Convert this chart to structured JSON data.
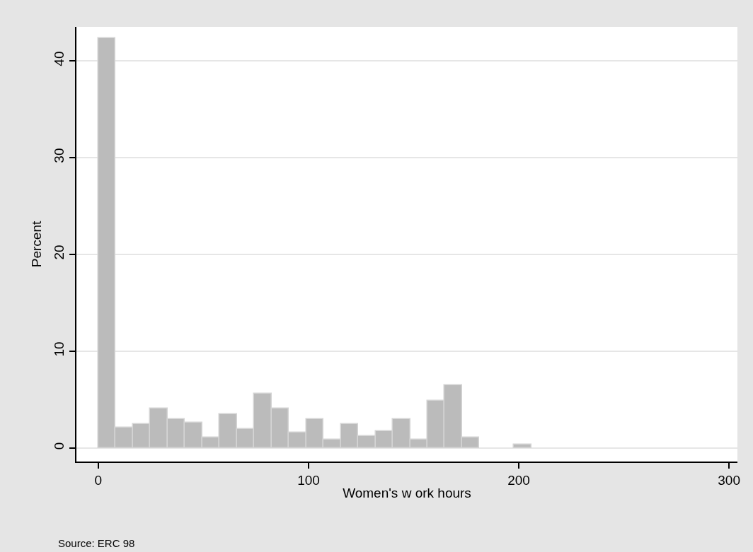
{
  "chart_data": {
    "type": "histogram",
    "xlabel": "Women's w ork hours",
    "ylabel": "Percent",
    "bins": [
      0,
      8.24,
      16.48,
      24.72,
      32.96,
      41.2,
      49.44,
      57.68,
      65.92,
      74.16,
      82.4,
      90.64,
      98.88,
      107.12,
      115.36,
      123.6,
      131.84,
      140.08,
      148.32,
      156.56,
      164.8,
      173.04,
      181.28,
      189.52,
      197.76,
      206
    ],
    "values": [
      42.3,
      2.1,
      2.5,
      4.05,
      3.0,
      2.65,
      1.06,
      3.5,
      1.96,
      5.6,
      4.05,
      1.62,
      3.0,
      0.9,
      2.46,
      1.23,
      1.76,
      3.0,
      0.9,
      4.9,
      6.5,
      1.06,
      0,
      0,
      0.36
    ],
    "color": "#bbbbbb",
    "xlim": [
      -10.4,
      304
    ],
    "ylim": [
      -1.4,
      43.5
    ],
    "xticks": [
      0,
      100,
      200,
      300
    ],
    "yticks": [
      0,
      10,
      20,
      30,
      40
    ],
    "grid": "y",
    "annotations": [
      "Source: ERC 98"
    ]
  }
}
